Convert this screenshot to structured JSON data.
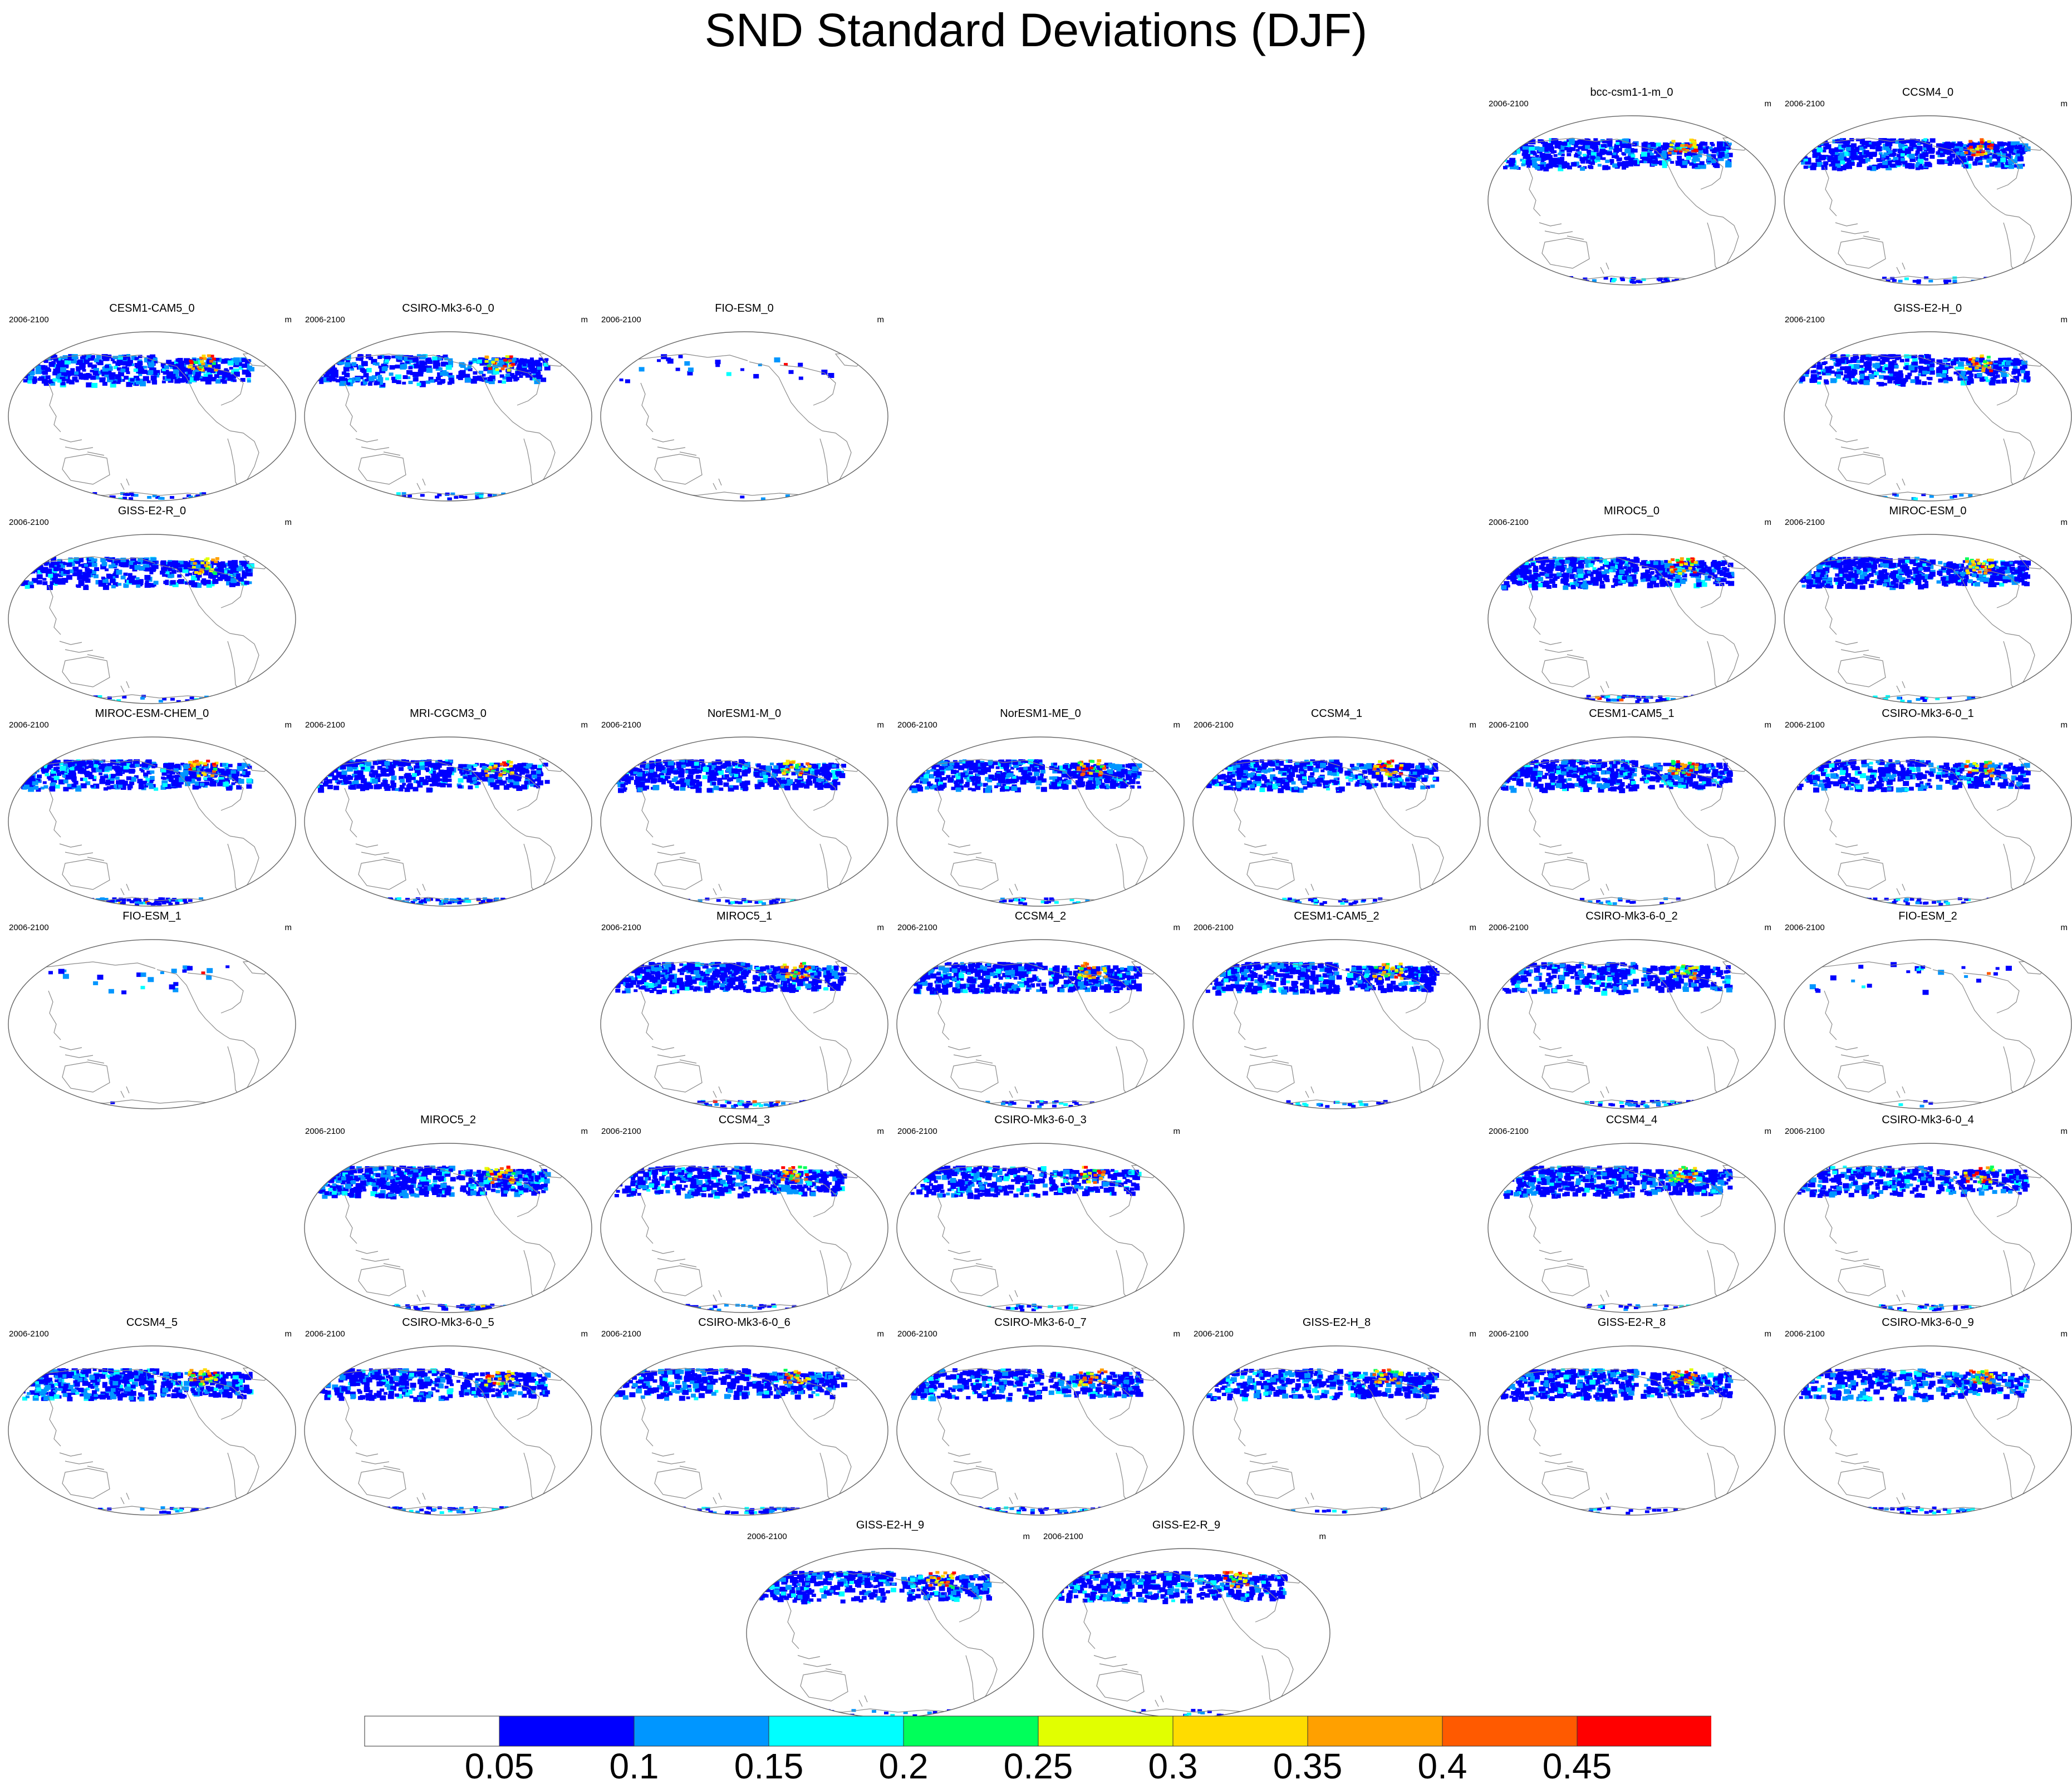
{
  "title": "SND Standard Deviations (DJF)",
  "panel_left_label": "2006-2100",
  "panel_right_label": "m",
  "panels": [
    {
      "name": "bcc-csm1-1-m_0",
      "row": 0,
      "col": 5,
      "intensity": 1.0,
      "antarctic": 0.25
    },
    {
      "name": "CCSM4_0",
      "row": 0,
      "col": 6,
      "intensity": 1.1,
      "antarctic": 0.3
    },
    {
      "name": "CESM1-CAM5_0",
      "row": 1,
      "col": 0,
      "intensity": 1.0,
      "antarctic": 0.3
    },
    {
      "name": "CSIRO-Mk3-6-0_0",
      "row": 1,
      "col": 1,
      "intensity": 0.8,
      "antarctic": 0.4
    },
    {
      "name": "FIO-ESM_0",
      "row": 1,
      "col": 2,
      "intensity": 0.05,
      "antarctic": 0.05
    },
    {
      "name": "GISS-E2-H_0",
      "row": 1,
      "col": 6,
      "intensity": 0.9,
      "antarctic": 0.2
    },
    {
      "name": "GISS-E2-R_0",
      "row": 2,
      "col": 0,
      "intensity": 0.9,
      "antarctic": 0.2
    },
    {
      "name": "MIROC5_0",
      "row": 2,
      "col": 5,
      "intensity": 1.1,
      "antarctic": 0.6
    },
    {
      "name": "MIROC-ESM_0",
      "row": 2,
      "col": 6,
      "intensity": 1.1,
      "antarctic": 0.3
    },
    {
      "name": "MIROC-ESM-CHEM_0",
      "row": 3,
      "col": 0,
      "intensity": 1.0,
      "antarctic": 0.7
    },
    {
      "name": "MRI-CGCM3_0",
      "row": 3,
      "col": 1,
      "intensity": 0.9,
      "antarctic": 0.9
    },
    {
      "name": "NorESM1-M_0",
      "row": 3,
      "col": 2,
      "intensity": 1.0,
      "antarctic": 0.3
    },
    {
      "name": "NorESM1-ME_0",
      "row": 3,
      "col": 3,
      "intensity": 1.1,
      "antarctic": 0.3
    },
    {
      "name": "CCSM4_1",
      "row": 3,
      "col": 4,
      "intensity": 1.0,
      "antarctic": 0.3
    },
    {
      "name": "CESM1-CAM5_1",
      "row": 3,
      "col": 5,
      "intensity": 1.05,
      "antarctic": 0.3
    },
    {
      "name": "CSIRO-Mk3-6-0_1",
      "row": 3,
      "col": 6,
      "intensity": 0.8,
      "antarctic": 0.4
    },
    {
      "name": "FIO-ESM_1",
      "row": 4,
      "col": 0,
      "intensity": 0.05,
      "antarctic": 0.05
    },
    {
      "name": "MIROC5_1",
      "row": 4,
      "col": 2,
      "intensity": 1.1,
      "antarctic": 0.6
    },
    {
      "name": "CCSM4_2",
      "row": 4,
      "col": 3,
      "intensity": 1.0,
      "antarctic": 0.3
    },
    {
      "name": "CESM1-CAM5_2",
      "row": 4,
      "col": 4,
      "intensity": 1.0,
      "antarctic": 0.3
    },
    {
      "name": "CSIRO-Mk3-6-0_2",
      "row": 4,
      "col": 5,
      "intensity": 0.8,
      "antarctic": 0.4
    },
    {
      "name": "FIO-ESM_2",
      "row": 4,
      "col": 6,
      "intensity": 0.05,
      "antarctic": 0.05
    },
    {
      "name": "MIROC5_2",
      "row": 5,
      "col": 1,
      "intensity": 1.1,
      "antarctic": 0.6
    },
    {
      "name": "CCSM4_3",
      "row": 5,
      "col": 2,
      "intensity": 1.0,
      "antarctic": 0.3
    },
    {
      "name": "CSIRO-Mk3-6-0_3",
      "row": 5,
      "col": 3,
      "intensity": 0.8,
      "antarctic": 0.4
    },
    {
      "name": "CCSM4_4",
      "row": 5,
      "col": 5,
      "intensity": 1.0,
      "antarctic": 0.3
    },
    {
      "name": "CSIRO-Mk3-6-0_4",
      "row": 5,
      "col": 6,
      "intensity": 0.8,
      "antarctic": 0.4
    },
    {
      "name": "CCSM4_5",
      "row": 6,
      "col": 0,
      "intensity": 1.1,
      "antarctic": 0.3
    },
    {
      "name": "CSIRO-Mk3-6-0_5",
      "row": 6,
      "col": 1,
      "intensity": 0.8,
      "antarctic": 0.4
    },
    {
      "name": "CSIRO-Mk3-6-0_6",
      "row": 6,
      "col": 2,
      "intensity": 0.8,
      "antarctic": 0.4
    },
    {
      "name": "CSIRO-Mk3-6-0_7",
      "row": 6,
      "col": 3,
      "intensity": 0.8,
      "antarctic": 0.4
    },
    {
      "name": "GISS-E2-H_8",
      "row": 6,
      "col": 4,
      "intensity": 0.9,
      "antarctic": 0.15
    },
    {
      "name": "GISS-E2-R_8",
      "row": 6,
      "col": 5,
      "intensity": 0.9,
      "antarctic": 0.15
    },
    {
      "name": "CSIRO-Mk3-6-0_9",
      "row": 6,
      "col": 6,
      "intensity": 0.8,
      "antarctic": 0.4
    },
    {
      "name": "GISS-E2-H_9",
      "row": 7,
      "col": 0,
      "intensity": 0.9,
      "antarctic": 0.15
    },
    {
      "name": "GISS-E2-R_9",
      "row": 7,
      "col": 1,
      "intensity": 0.9,
      "antarctic": 0.15
    }
  ],
  "colorbar": {
    "colors": [
      "#ffffff",
      "#0000ff",
      "#0096ff",
      "#00ffff",
      "#00ff5a",
      "#e1ff00",
      "#ffdc00",
      "#ffa000",
      "#ff5a00",
      "#ff0000"
    ],
    "labels": [
      "0.05",
      "0.1",
      "0.15",
      "0.2",
      "0.25",
      "0.3",
      "0.35",
      "0.4",
      "0.45"
    ]
  }
}
